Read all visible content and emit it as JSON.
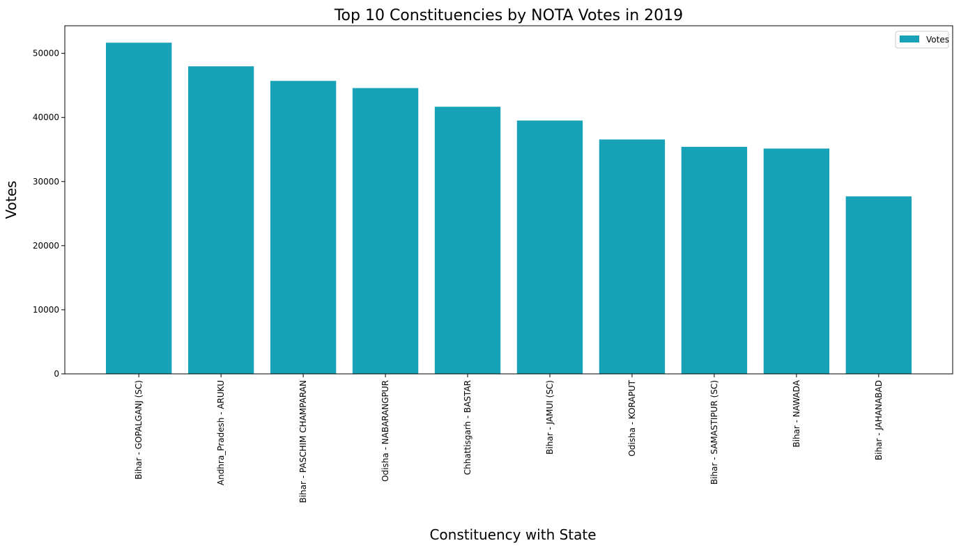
{
  "chart_data": {
    "type": "bar",
    "title": "Top 10 Constituencies by NOTA Votes in 2019",
    "xlabel": "Constituency with State",
    "ylabel": "Votes",
    "categories": [
      "Bihar - GOPALGANJ (SC)",
      "Andhra_Pradesh - ARUKU",
      "Bihar - PASCHIM CHAMPARAN",
      "Odisha - NABARANGPUR",
      "Chhattisgarh - BASTAR",
      "Bihar - JAMUI (SC)",
      "Odisha - KORAPUT",
      "Bihar - SAMASTIPUR (SC)",
      "Bihar - NAWADA",
      "Bihar - JAHANABAD"
    ],
    "series": [
      {
        "name": "Votes",
        "color": "#17a2b8",
        "values": [
          51660,
          47977,
          45699,
          44582,
          41667,
          39514,
          36561,
          35417,
          35147,
          27683
        ]
      }
    ],
    "ylim": [
      0,
      54300
    ],
    "yticks": [
      0,
      10000,
      20000,
      30000,
      40000,
      50000
    ],
    "grid": false,
    "legend": "top-right"
  }
}
